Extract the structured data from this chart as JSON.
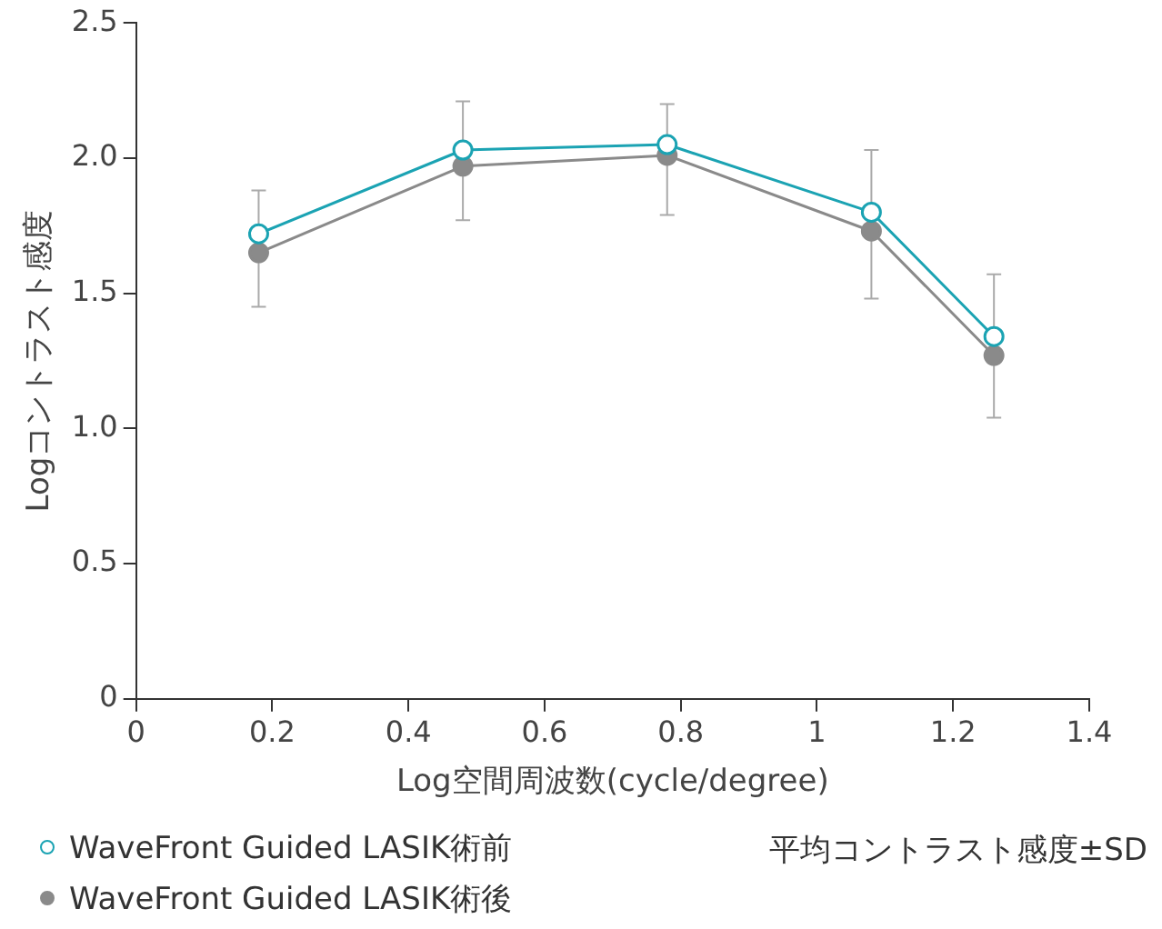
{
  "chart_data": {
    "type": "line",
    "xlabel": "Log空間周波数(cycle/degree)",
    "ylabel": "Logコントラスト感度",
    "x": [
      0.18,
      0.48,
      0.78,
      1.08,
      1.26
    ],
    "series": [
      {
        "name": "WaveFront Guided LASIK術前",
        "color": "#1ba3b3",
        "values": [
          1.72,
          2.03,
          2.05,
          1.8,
          1.34
        ]
      },
      {
        "name": "WaveFront Guided LASIK術後",
        "color": "#8a8a8a",
        "values": [
          1.65,
          1.97,
          2.01,
          1.73,
          1.27
        ],
        "errors": [
          [
            1.45,
            1.88
          ],
          [
            1.77,
            2.21
          ],
          [
            1.79,
            2.2
          ],
          [
            1.48,
            2.03
          ],
          [
            1.04,
            1.57
          ]
        ]
      }
    ],
    "xlim": [
      0,
      1.4
    ],
    "xticks": [
      0,
      0.2,
      0.4,
      0.6,
      0.8,
      1,
      1.2,
      1.4
    ],
    "ylim": [
      0,
      2.5
    ],
    "yticks": [
      0,
      0.5,
      {
        "value": 1,
        "label": "1.0"
      },
      1.5,
      {
        "value": 2,
        "label": "2.0"
      },
      2.5
    ],
    "grid": false,
    "legend": "bottom left",
    "marker": "circle",
    "line_style": "solid",
    "annotations": [
      "平均コントラスト感度±SD"
    ]
  }
}
